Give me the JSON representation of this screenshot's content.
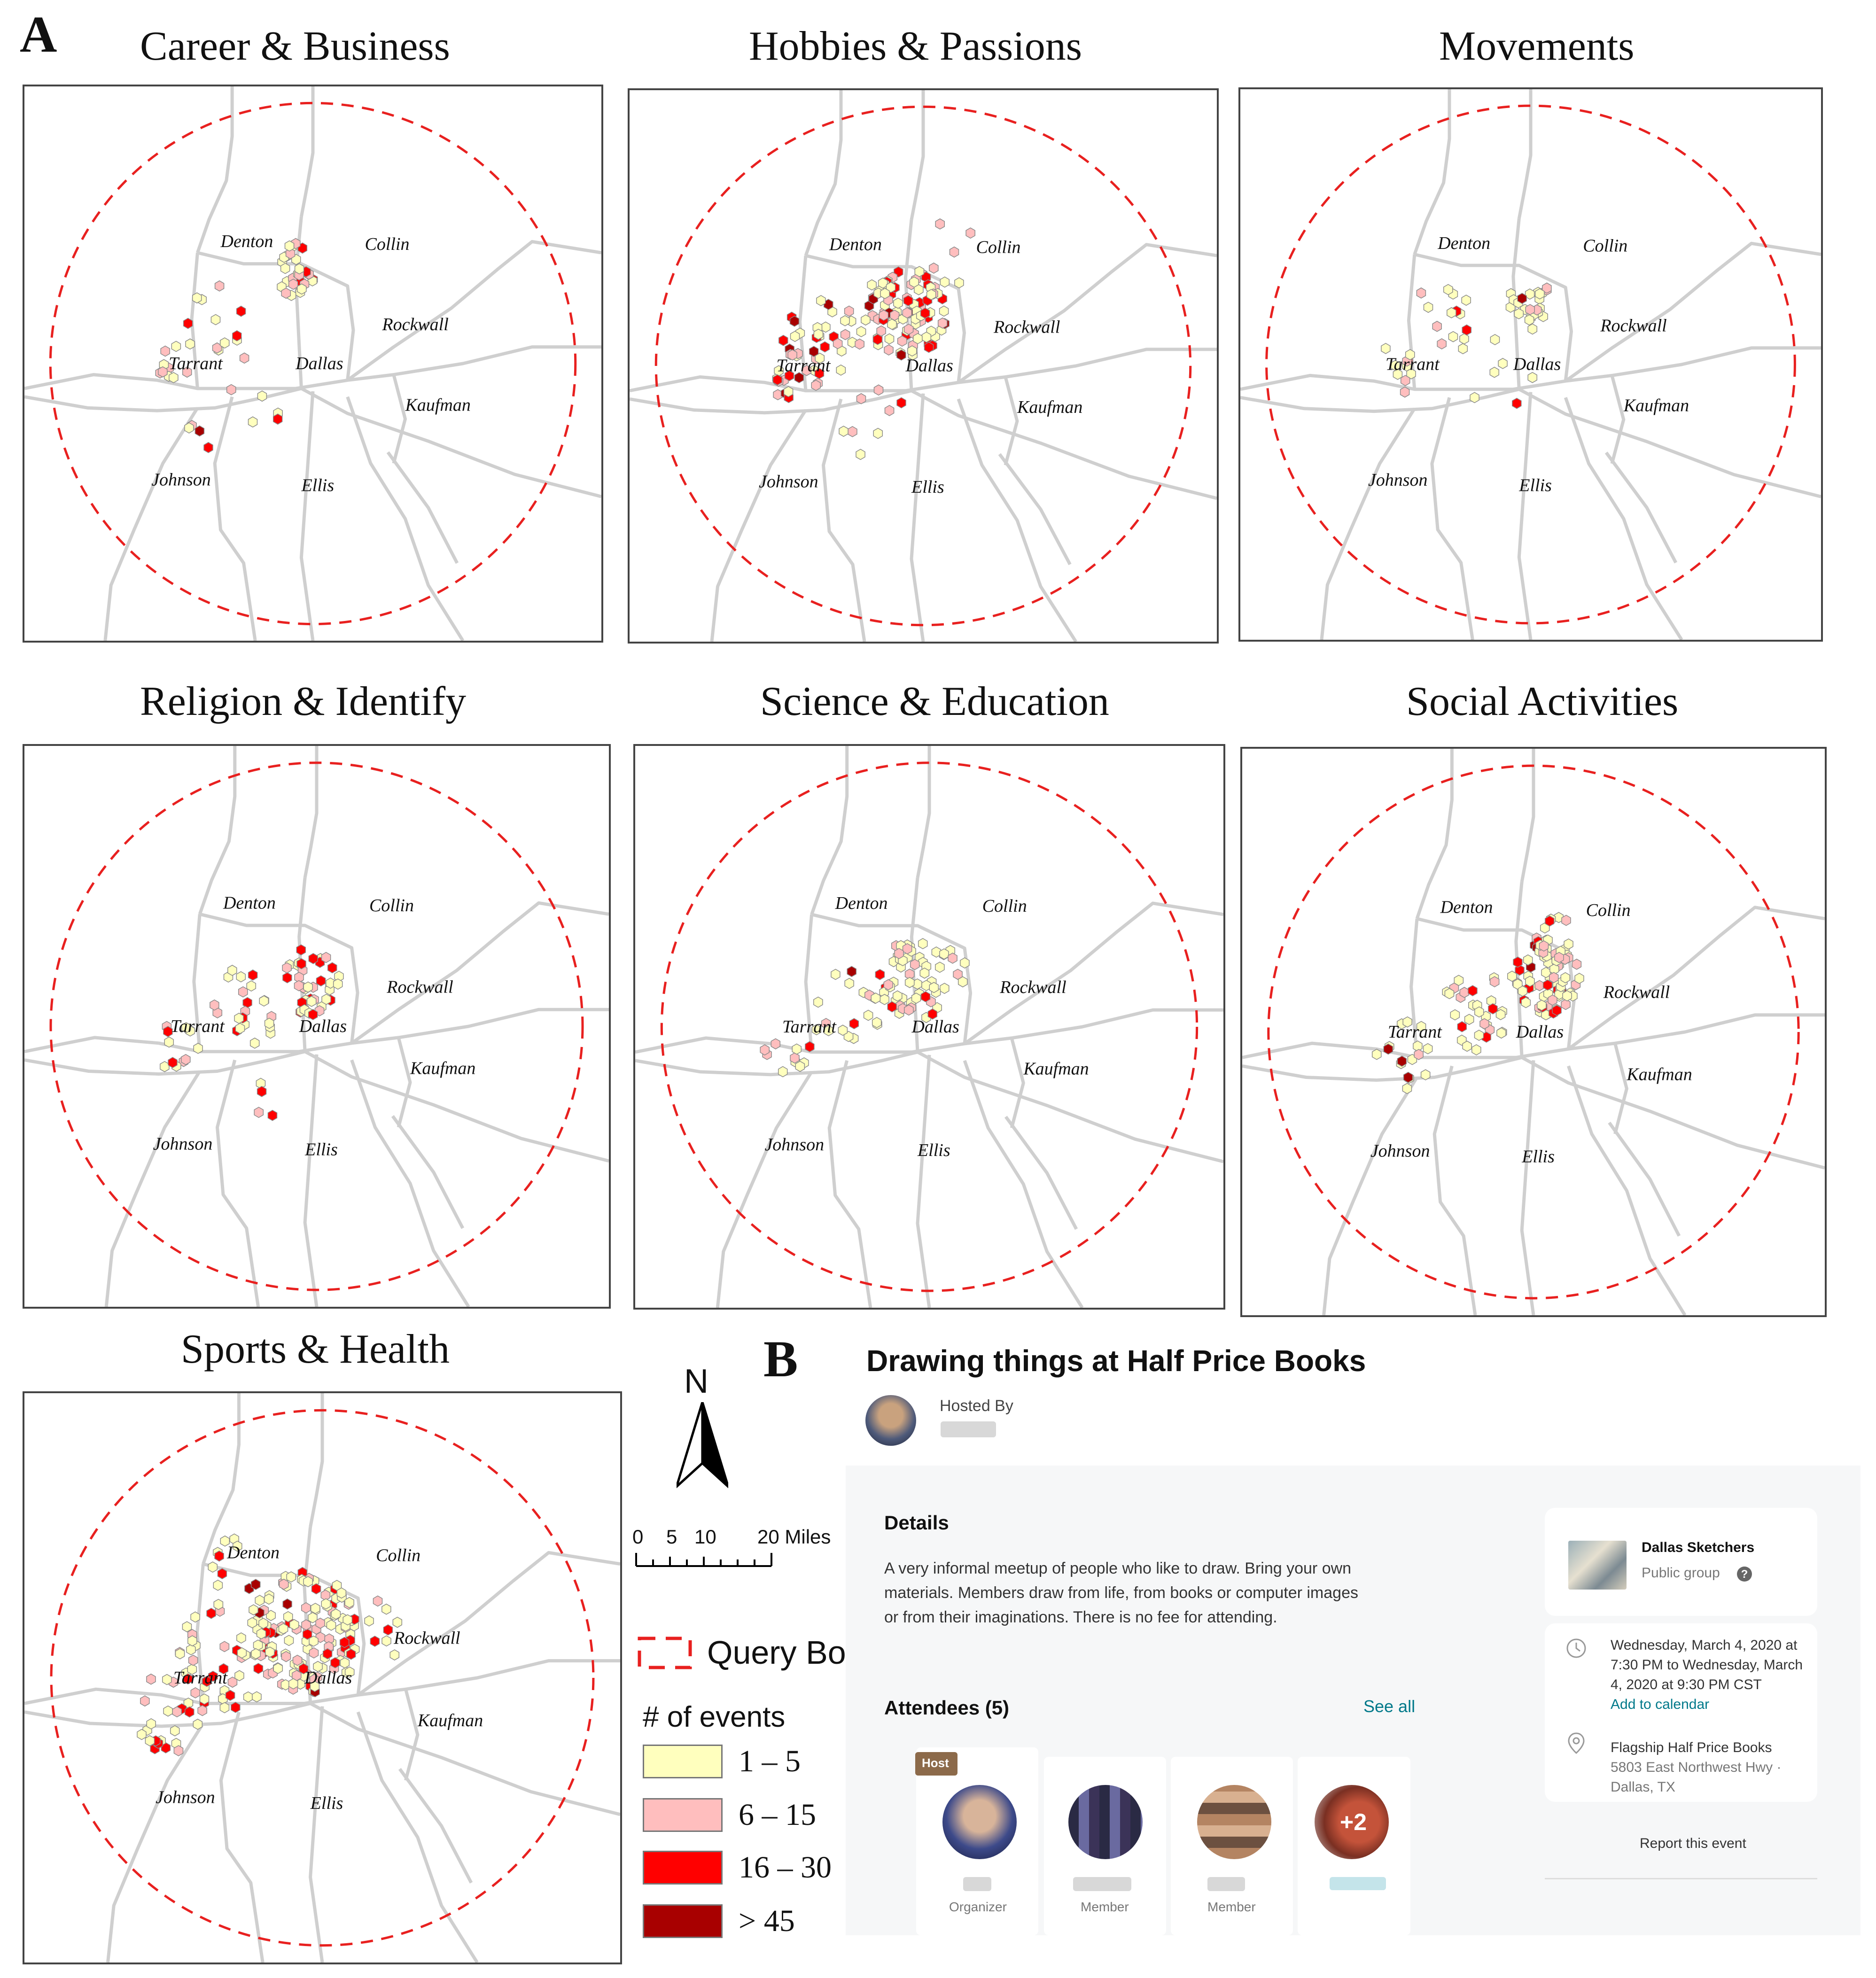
{
  "panel_a_label": "A",
  "panel_b_label": "B",
  "maps": [
    {
      "title": "Career & Business",
      "labels": {
        "denton": "Denton",
        "collin": "Collin",
        "rockwall": "Rockwall",
        "tarrant": "Tarrant",
        "dallas": "Dallas",
        "kaufman": "Kaufman",
        "johnson": "Johnson",
        "ellis": "Ellis"
      }
    },
    {
      "title": "Hobbies & Passions",
      "labels": {
        "denton": "Denton",
        "collin": "Collin",
        "rockwall": "Rockwall",
        "tarrant": "Tarrant",
        "dallas": "Dallas",
        "kaufman": "Kaufman",
        "johnson": "Johnson",
        "ellis": "Ellis"
      }
    },
    {
      "title": "Movements",
      "labels": {
        "denton": "Denton",
        "collin": "Collin",
        "rockwall": "Rockwall",
        "tarrant": "Tarrant",
        "dallas": "Dallas",
        "kaufman": "Kaufman",
        "johnson": "Johnson",
        "ellis": "Ellis"
      }
    },
    {
      "title": "Religion & Identify",
      "labels": {
        "denton": "Denton",
        "collin": "Collin",
        "rockwall": "Rockwall",
        "tarrant": "Tarrant",
        "dallas": "Dallas",
        "kaufman": "Kaufman",
        "johnson": "Johnson",
        "ellis": "Ellis"
      }
    },
    {
      "title": "Science & Education",
      "labels": {
        "denton": "Denton",
        "collin": "Collin",
        "rockwall": "Rockwall",
        "tarrant": "Tarrant",
        "dallas": "Dallas",
        "kaufman": "Kaufman",
        "johnson": "Johnson",
        "ellis": "Ellis"
      }
    },
    {
      "title": "Social Activities",
      "labels": {
        "denton": "Denton",
        "collin": "Collin",
        "rockwall": "Rockwall",
        "tarrant": "Tarrant",
        "dallas": "Dallas",
        "kaufman": "Kaufman",
        "johnson": "Johnson",
        "ellis": "Ellis"
      }
    },
    {
      "title": "Sports & Health",
      "labels": {
        "denton": "Denton",
        "collin": "Collin",
        "rockwall": "Rockwall",
        "tarrant": "Tarrant",
        "dallas": "Dallas",
        "kaufman": "Kaufman",
        "johnson": "Johnson",
        "ellis": "Ellis"
      }
    }
  ],
  "legend": {
    "north": "N",
    "scale_ticks": [
      "0",
      "5",
      "10",
      "20 Miles"
    ],
    "boundary": "Query Boundary",
    "events_title": "# of events",
    "classes": [
      {
        "label": "1 – 5",
        "color": "#ffffbe"
      },
      {
        "label": "6 – 15",
        "color": "#ffbebe"
      },
      {
        "label": "16 – 30",
        "color": "#ff0000"
      },
      {
        "label": "> 45",
        "color": "#a80000"
      }
    ],
    "boundary_color": "#e8201f"
  },
  "meetup": {
    "event_title": "Drawing things at Half Price Books",
    "hosted_by": "Hosted By",
    "details_heading": "Details",
    "details_line1": "A very informal meetup of people who like to draw. Bring your own",
    "details_line2": "materials. Members draw from life, from books or computer images",
    "details_line3": "or from their imaginations. There is no fee for attending.",
    "attendees_heading": "Attendees (5)",
    "see_all": "See all",
    "host_badge": "Host",
    "roles": [
      "Organizer",
      "Member",
      "Member"
    ],
    "more_count": "+2",
    "group_name": "Dallas Sketchers",
    "group_type": "Public group",
    "date_line1": "Wednesday, March 4, 2020 at",
    "date_line2": "7:30 PM to Wednesday, March",
    "date_line3": "4, 2020 at 9:30 PM CST",
    "add_calendar": "Add to calendar",
    "venue_line1": "Flagship Half Price Books",
    "venue_line2": "5803 East Northwest Hwy ·",
    "venue_line3": "Dallas, TX",
    "report": "Report this event",
    "accent_color": "#00798a"
  }
}
